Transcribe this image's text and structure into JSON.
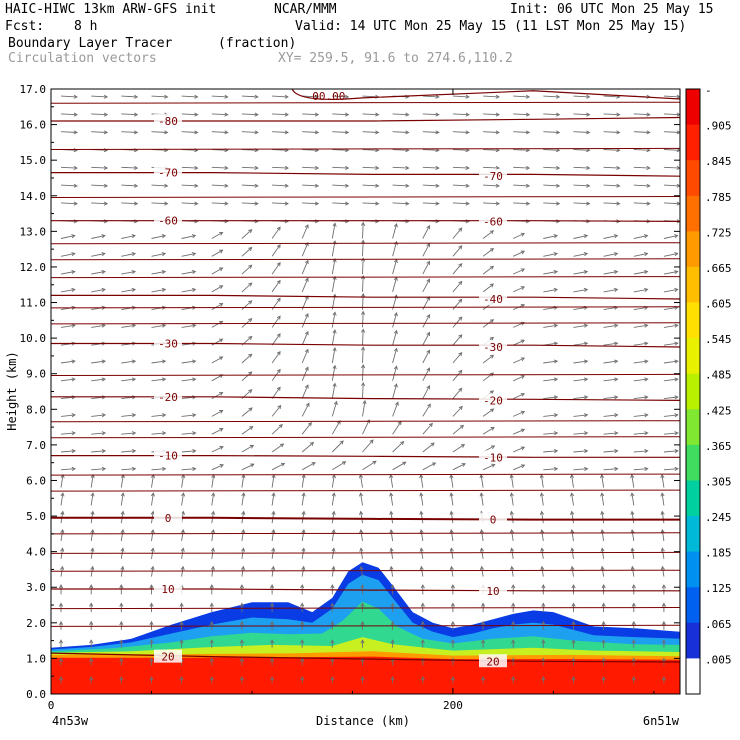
{
  "header": {
    "model": "HAIC-HIWC 13km ARW-GFS init",
    "org": "NCAR/MMM",
    "init": "Init: 06 UTC Mon 25 May 15",
    "fcst_label": "Fcst:",
    "fcst_value": "8 h",
    "valid": "Valid: 14 UTC Mon 25 May 15 (11 LST Mon 25 May 15)",
    "field1": "Boundary Layer Tracer",
    "field1_units": "(fraction)",
    "field2": "Circulation vectors",
    "xy": "XY= 259.5, 91.6 to 274.6,110.2"
  },
  "chart_data": {
    "type": "heatmap",
    "title": "Boundary Layer Tracer (fraction)",
    "xlabel": "Distance (km)",
    "ylabel": "Height (km)",
    "xlim": [
      0,
      313
    ],
    "ylim": [
      0,
      17
    ],
    "x_ticks": [
      {
        "value": 0,
        "label": "0"
      },
      {
        "value": 200,
        "label": "200"
      }
    ],
    "x_end_labels": {
      "left": "4n53w",
      "right": "6n51w"
    },
    "y_ticks": [
      0,
      1,
      2,
      3,
      4,
      5,
      6,
      7,
      8,
      9,
      10,
      11,
      12,
      13,
      14,
      15,
      16,
      17
    ],
    "y_tick_labels": [
      "0.0",
      "1.0",
      "2.0",
      "3.0",
      "4.0",
      "5.0",
      "6.0",
      "7.0",
      "8.0",
      "9.0",
      "10.0",
      "11.0",
      "12.0",
      "13.0",
      "14.0",
      "15.0",
      "16.0",
      "17.0"
    ],
    "colorbar": {
      "labels": [
        "-",
        ".905",
        ".845",
        ".785",
        ".725",
        ".665",
        ".605",
        ".545",
        ".485",
        ".425",
        ".365",
        ".305",
        ".245",
        ".185",
        ".125",
        ".065",
        ".005"
      ],
      "colors": [
        "#ee0000",
        "#ff2000",
        "#ff4a00",
        "#ff7000",
        "#ff9a00",
        "#ffbe00",
        "#ffe000",
        "#e8f000",
        "#b8f000",
        "#80e830",
        "#40dc60",
        "#00d0a0",
        "#00b8d8",
        "#0090f0",
        "#0060f0",
        "#1830d8",
        "#ffffff"
      ]
    },
    "tracer_layers": [
      {
        "name": "0.005",
        "color": "#0a3ce6",
        "top": [
          [
            0,
            1.3
          ],
          [
            20,
            1.38
          ],
          [
            40,
            1.55
          ],
          [
            60,
            1.95
          ],
          [
            80,
            2.3
          ],
          [
            100,
            2.58
          ],
          [
            118,
            2.58
          ],
          [
            130,
            2.3
          ],
          [
            140,
            2.7
          ],
          [
            148,
            3.45
          ],
          [
            155,
            3.7
          ],
          [
            163,
            3.55
          ],
          [
            170,
            3.05
          ],
          [
            180,
            2.3
          ],
          [
            190,
            2.0
          ],
          [
            200,
            1.85
          ],
          [
            210,
            1.95
          ],
          [
            220,
            2.1
          ],
          [
            230,
            2.25
          ],
          [
            240,
            2.35
          ],
          [
            250,
            2.3
          ],
          [
            260,
            2.1
          ],
          [
            270,
            1.9
          ],
          [
            290,
            1.85
          ],
          [
            313,
            1.75
          ]
        ]
      },
      {
        "name": "0.065",
        "color": "#1ea0f0",
        "top": [
          [
            0,
            1.25
          ],
          [
            20,
            1.32
          ],
          [
            40,
            1.45
          ],
          [
            60,
            1.7
          ],
          [
            80,
            1.95
          ],
          [
            100,
            2.15
          ],
          [
            118,
            2.1
          ],
          [
            130,
            2.0
          ],
          [
            140,
            2.4
          ],
          [
            148,
            3.1
          ],
          [
            155,
            3.35
          ],
          [
            163,
            3.2
          ],
          [
            170,
            2.7
          ],
          [
            180,
            2.0
          ],
          [
            190,
            1.75
          ],
          [
            200,
            1.6
          ],
          [
            210,
            1.7
          ],
          [
            220,
            1.85
          ],
          [
            230,
            1.95
          ],
          [
            240,
            2.0
          ],
          [
            250,
            1.95
          ],
          [
            260,
            1.8
          ],
          [
            270,
            1.65
          ],
          [
            290,
            1.6
          ],
          [
            313,
            1.55
          ]
        ]
      },
      {
        "name": "0.185",
        "color": "#30d890",
        "top": [
          [
            0,
            1.2
          ],
          [
            30,
            1.28
          ],
          [
            60,
            1.45
          ],
          [
            80,
            1.62
          ],
          [
            100,
            1.72
          ],
          [
            118,
            1.68
          ],
          [
            135,
            1.7
          ],
          [
            145,
            2.05
          ],
          [
            155,
            2.6
          ],
          [
            163,
            2.4
          ],
          [
            172,
            1.9
          ],
          [
            185,
            1.55
          ],
          [
            200,
            1.42
          ],
          [
            220,
            1.55
          ],
          [
            240,
            1.62
          ],
          [
            260,
            1.5
          ],
          [
            290,
            1.4
          ],
          [
            313,
            1.38
          ]
        ]
      },
      {
        "name": "0.425",
        "color": "#c8f020",
        "top": [
          [
            0,
            1.16
          ],
          [
            40,
            1.2
          ],
          [
            80,
            1.32
          ],
          [
            110,
            1.38
          ],
          [
            140,
            1.35
          ],
          [
            155,
            1.6
          ],
          [
            170,
            1.4
          ],
          [
            200,
            1.22
          ],
          [
            240,
            1.3
          ],
          [
            270,
            1.22
          ],
          [
            313,
            1.18
          ]
        ]
      },
      {
        "name": "0.725",
        "color": "#ff9a00",
        "top": [
          [
            0,
            1.1
          ],
          [
            60,
            1.12
          ],
          [
            120,
            1.14
          ],
          [
            160,
            1.2
          ],
          [
            200,
            1.08
          ],
          [
            260,
            1.1
          ],
          [
            313,
            1.06
          ]
        ]
      },
      {
        "name": "0.905",
        "color": "#ff1a00",
        "top": [
          [
            0,
            1.02
          ],
          [
            60,
            1.02
          ],
          [
            120,
            1.03
          ],
          [
            160,
            1.05
          ],
          [
            200,
            0.98
          ],
          [
            260,
            0.98
          ],
          [
            313,
            0.96
          ]
        ]
      }
    ],
    "temperature_contours": [
      {
        "label": "20",
        "y": [
          1.15,
          1.05,
          0.98,
          0.92,
          0.9
        ],
        "label_positions": [
          [
            130,
            1.05
          ],
          [
            455,
            0.92
          ]
        ]
      },
      {
        "label": "10",
        "y": [
          2.95,
          2.95,
          2.92,
          2.9,
          2.9
        ],
        "label_positions": [
          [
            130,
            2.95
          ],
          [
            455,
            2.9
          ]
        ]
      },
      {
        "label": "0",
        "y": [
          4.95,
          4.95,
          4.92,
          4.9,
          4.9
        ],
        "label_positions": [
          [
            130,
            4.95
          ],
          [
            455,
            4.9
          ]
        ]
      },
      {
        "label": "-10",
        "y": [
          6.7,
          6.7,
          6.68,
          6.65,
          6.65
        ],
        "label_positions": [
          [
            130,
            6.7
          ],
          [
            455,
            6.65
          ]
        ]
      },
      {
        "label": "-20",
        "y": [
          8.35,
          8.35,
          8.3,
          8.28,
          8.25
        ],
        "label_positions": [
          [
            130,
            8.35
          ],
          [
            455,
            8.25
          ]
        ]
      },
      {
        "label": "-30",
        "y": [
          9.85,
          9.85,
          9.8,
          9.8,
          9.75
        ],
        "label_positions": [
          [
            130,
            9.85
          ],
          [
            455,
            9.75
          ]
        ]
      },
      {
        "label": "-40",
        "y": [
          11.2,
          11.2,
          11.15,
          11.15,
          11.1
        ],
        "label_positions": [
          [
            455,
            11.1
          ]
        ]
      },
      {
        "label": "-60",
        "y": [
          13.3,
          13.3,
          13.3,
          13.3,
          13.28
        ],
        "label_positions": [
          [
            130,
            13.3
          ],
          [
            455,
            13.28
          ]
        ]
      },
      {
        "label": "-70",
        "y": [
          14.65,
          14.65,
          14.6,
          14.6,
          14.55
        ],
        "label_positions": [
          [
            130,
            14.65
          ],
          [
            455,
            14.55
          ]
        ]
      },
      {
        "label": "-80",
        "y": [
          16.1,
          16.1,
          16.1,
          16.15,
          16.2
        ],
        "label_positions": [
          [
            130,
            16.1
          ]
        ]
      }
    ],
    "other_contours_y": [
      1.9,
      2.4,
      3.45,
      3.95,
      4.5,
      5.7,
      6.15,
      7.2,
      7.65,
      8.95,
      10.4,
      10.85,
      11.7,
      12.2,
      12.65,
      13.95,
      15.3,
      16.6
    ],
    "tropopause_label": "00.00"
  },
  "colors": {
    "contour": "#7a0000",
    "vector": "#6e6e6e",
    "axis": "#000000"
  }
}
